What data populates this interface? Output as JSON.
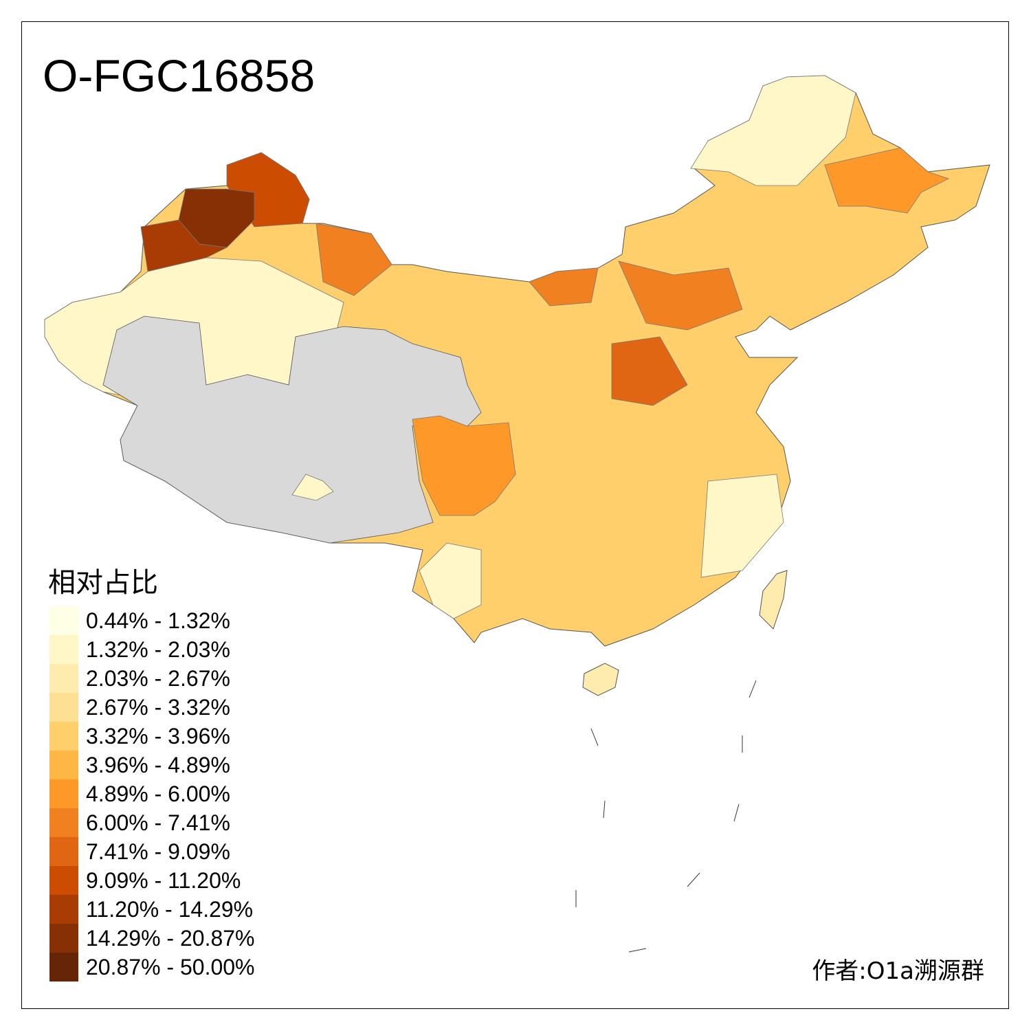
{
  "title": "O-FGC16858",
  "legend": {
    "title": "相对占比",
    "bins": [
      {
        "label": "0.44% - 1.32%",
        "color": "#FFFFE5"
      },
      {
        "label": "1.32% - 2.03%",
        "color": "#FFF7C8"
      },
      {
        "label": "2.03% - 2.67%",
        "color": "#FEEBAE"
      },
      {
        "label": "2.67% - 3.32%",
        "color": "#FEE094"
      },
      {
        "label": "3.32% - 3.96%",
        "color": "#FECF6A"
      },
      {
        "label": "3.96% - 4.89%",
        "color": "#FEB644"
      },
      {
        "label": "4.89% - 6.00%",
        "color": "#FE9929"
      },
      {
        "label": "6.00% - 7.41%",
        "color": "#F08020"
      },
      {
        "label": "7.41% - 9.09%",
        "color": "#E06614"
      },
      {
        "label": "9.09% - 11.20%",
        "color": "#CC4C02"
      },
      {
        "label": "11.20% - 14.29%",
        "color": "#A83C04"
      },
      {
        "label": "14.29% - 20.87%",
        "color": "#873005"
      },
      {
        "label": "20.87% - 50.00%",
        "color": "#662506"
      }
    ]
  },
  "no_data_color": "#D9D9D9",
  "credit": "作者:O1a溯源群"
}
